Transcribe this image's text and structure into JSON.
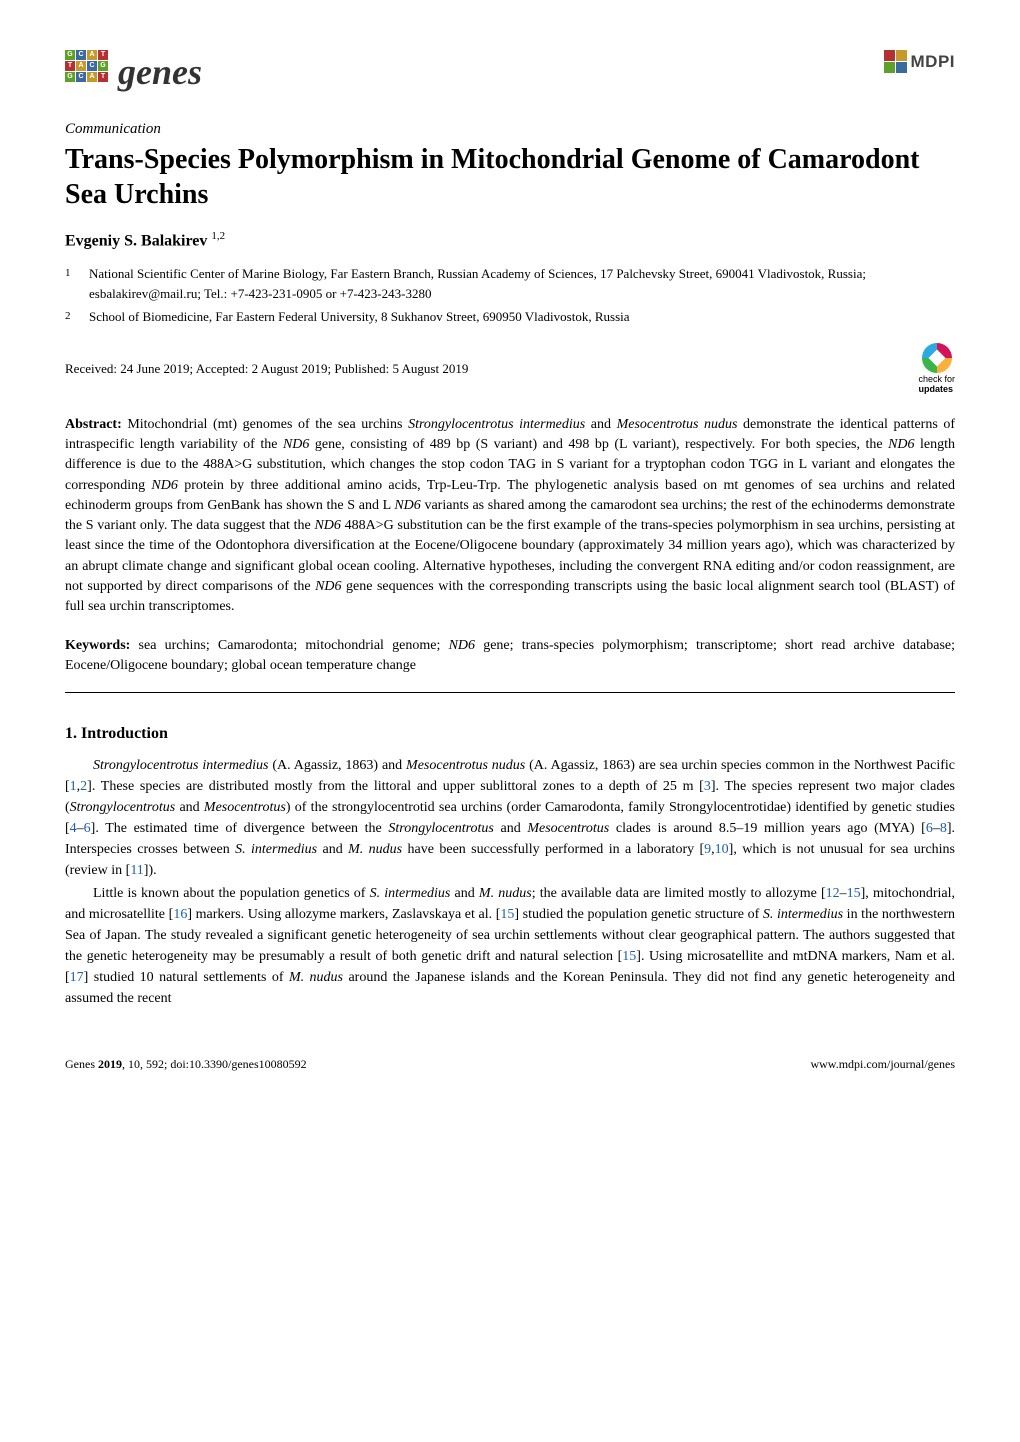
{
  "header": {
    "journal_logo_text": "genes",
    "publisher_text": "MDPI",
    "logo_colors": {
      "green": "#5fa028",
      "blue": "#3b6aa0",
      "gold": "#c49a2a",
      "red": "#b53030",
      "dark": "#3a3a3a"
    },
    "logo_letters": [
      "G",
      "C",
      "A",
      "T",
      "T",
      "A",
      "C",
      "G",
      "G",
      "C",
      "A",
      "T"
    ]
  },
  "article_type": "Communication",
  "title": "Trans-Species Polymorphism in Mitochondrial Genome of Camarodont Sea Urchins",
  "author": {
    "name": "Evgeniy S. Balakirev",
    "superscript": "1,2"
  },
  "affiliations": [
    {
      "num": "1",
      "text": "National Scientific Center of Marine Biology, Far Eastern Branch, Russian Academy of Sciences, 17 Palchevsky Street, 690041 Vladivostok, Russia; esbalakirev@mail.ru; Tel.: +7-423-231-0905 or +7-423-243-3280"
    },
    {
      "num": "2",
      "text": "School of Biomedicine, Far Eastern Federal University, 8 Sukhanov Street, 690950 Vladivostok, Russia"
    }
  ],
  "dates": "Received: 24 June 2019; Accepted: 2 August 2019; Published: 5 August 2019",
  "check_updates": {
    "line1": "check for",
    "line2": "updates"
  },
  "abstract": {
    "label": "Abstract:",
    "text": "Mitochondrial (mt) genomes of the sea urchins Strongylocentrotus intermedius and Mesocentrotus nudus demonstrate the identical patterns of intraspecific length variability of the ND6 gene, consisting of 489 bp (S variant) and 498 bp (L variant), respectively. For both species, the ND6 length difference is due to the 488A>G substitution, which changes the stop codon TAG in S variant for a tryptophan codon TGG in L variant and elongates the corresponding ND6 protein by three additional amino acids, Trp-Leu-Trp. The phylogenetic analysis based on mt genomes of sea urchins and related echinoderm groups from GenBank has shown the S and L ND6 variants as shared among the camarodont sea urchins; the rest of the echinoderms demonstrate the S variant only. The data suggest that the ND6 488A>G substitution can be the first example of the trans-species polymorphism in sea urchins, persisting at least since the time of the Odontophora diversification at the Eocene/Oligocene boundary (approximately 34 million years ago), which was characterized by an abrupt climate change and significant global ocean cooling. Alternative hypotheses, including the convergent RNA editing and/or codon reassignment, are not supported by direct comparisons of the ND6 gene sequences with the corresponding transcripts using the basic local alignment search tool (BLAST) of full sea urchin transcriptomes."
  },
  "keywords": {
    "label": "Keywords:",
    "text": "sea urchins; Camarodonta; mitochondrial genome; ND6 gene; trans-species polymorphism; transcriptome; short read archive database; Eocene/Oligocene boundary; global ocean temperature change"
  },
  "section1": {
    "heading": "1. Introduction",
    "para1_parts": [
      {
        "t": "Strongylocentrotus intermedius",
        "italic": true
      },
      {
        "t": " (A. Agassiz, 1863) and "
      },
      {
        "t": "Mesocentrotus nudus",
        "italic": true
      },
      {
        "t": " (A. Agassiz, 1863) are sea urchin species common in the Northwest Pacific ["
      },
      {
        "t": "1",
        "ref": true
      },
      {
        "t": ","
      },
      {
        "t": "2",
        "ref": true
      },
      {
        "t": "]. These species are distributed mostly from the littoral and upper sublittoral zones to a depth of 25 m ["
      },
      {
        "t": "3",
        "ref": true
      },
      {
        "t": "]. The species represent two major clades ("
      },
      {
        "t": "Strongylocentrotus",
        "italic": true
      },
      {
        "t": " and "
      },
      {
        "t": "Mesocentrotus",
        "italic": true
      },
      {
        "t": ") of the strongylocentrotid sea urchins (order Camarodonta, family Strongylocentrotidae) identified by genetic studies ["
      },
      {
        "t": "4",
        "ref": true
      },
      {
        "t": "–"
      },
      {
        "t": "6",
        "ref": true
      },
      {
        "t": "]. The estimated time of divergence between the "
      },
      {
        "t": "Strongylocentrotus",
        "italic": true
      },
      {
        "t": " and "
      },
      {
        "t": "Mesocentrotus",
        "italic": true
      },
      {
        "t": " clades is around 8.5–19 million years ago (MYA) ["
      },
      {
        "t": "6",
        "ref": true
      },
      {
        "t": "–"
      },
      {
        "t": "8",
        "ref": true
      },
      {
        "t": "]. Interspecies crosses between "
      },
      {
        "t": "S. intermedius",
        "italic": true
      },
      {
        "t": " and "
      },
      {
        "t": "M. nudus",
        "italic": true
      },
      {
        "t": " have been successfully performed in a laboratory ["
      },
      {
        "t": "9",
        "ref": true
      },
      {
        "t": ","
      },
      {
        "t": "10",
        "ref": true
      },
      {
        "t": "], which is not unusual for sea urchins (review in ["
      },
      {
        "t": "11",
        "ref": true
      },
      {
        "t": "])."
      }
    ],
    "para2_parts": [
      {
        "t": "Little is known about the population genetics of "
      },
      {
        "t": "S. intermedius",
        "italic": true
      },
      {
        "t": " and "
      },
      {
        "t": "M. nudus",
        "italic": true
      },
      {
        "t": "; the available data are limited mostly to allozyme ["
      },
      {
        "t": "12",
        "ref": true
      },
      {
        "t": "–"
      },
      {
        "t": "15",
        "ref": true
      },
      {
        "t": "], mitochondrial, and microsatellite ["
      },
      {
        "t": "16",
        "ref": true
      },
      {
        "t": "] markers. Using allozyme markers, Zaslavskaya et al. ["
      },
      {
        "t": "15",
        "ref": true
      },
      {
        "t": "] studied the population genetic structure of "
      },
      {
        "t": "S. intermedius",
        "italic": true
      },
      {
        "t": " in the northwestern Sea of Japan. The study revealed a significant genetic heterogeneity of sea urchin settlements without clear geographical pattern. The authors suggested that the genetic heterogeneity may be presumably a result of both genetic drift and natural selection ["
      },
      {
        "t": "15",
        "ref": true
      },
      {
        "t": "]. Using microsatellite and mtDNA markers, Nam et al. ["
      },
      {
        "t": "17",
        "ref": true
      },
      {
        "t": "] studied 10 natural settlements of "
      },
      {
        "t": "M. nudus",
        "italic": true
      },
      {
        "t": " around the Japanese islands and the Korean Peninsula. They did not find any genetic heterogeneity and assumed the recent"
      }
    ]
  },
  "footer": {
    "left_journal": "Genes",
    "left_rest": " 2019, 10, 592; doi:10.3390/genes10080592",
    "right": "www.mdpi.com/journal/genes"
  },
  "colors": {
    "ref_link": "#1a5fb4",
    "text": "#000000",
    "bg": "#ffffff"
  }
}
